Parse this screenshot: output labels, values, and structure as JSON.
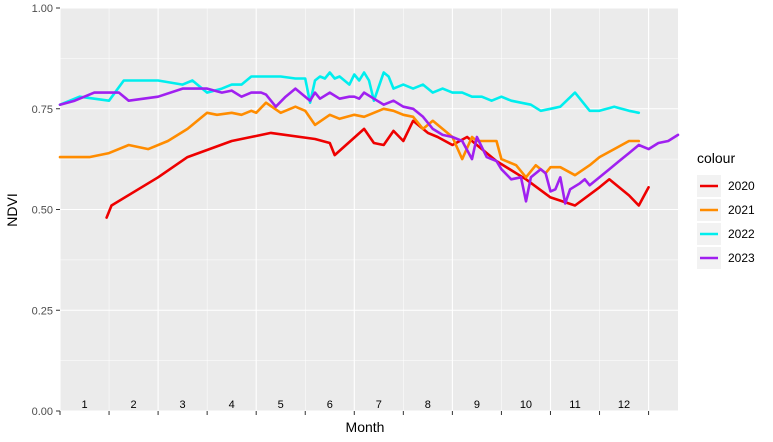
{
  "chart_data": {
    "type": "line",
    "title": "",
    "xlabel": "Month",
    "ylabel": "NDVI",
    "ylim": [
      0,
      1
    ],
    "xlim": [
      0,
      12.6
    ],
    "yticks": [
      0.0,
      0.25,
      0.5,
      0.75,
      1.0
    ],
    "ytick_labels": [
      "0.00",
      "0.25",
      "0.50",
      "0.75",
      "1.00"
    ],
    "month_labels": [
      "1",
      "2",
      "3",
      "4",
      "5",
      "6",
      "7",
      "8",
      "9",
      "10",
      "11",
      "12"
    ],
    "grid": true,
    "legend_title": "colour",
    "legend_position": "right",
    "series": [
      {
        "name": "2020",
        "color": "#ee0000",
        "x": [
          0.95,
          1.05,
          2.0,
          2.6,
          3.5,
          4.3,
          5.2,
          5.5,
          5.6,
          6.2,
          6.4,
          6.6,
          6.8,
          7.0,
          7.2,
          7.5,
          7.7,
          8.0,
          8.3,
          8.9,
          9.5,
          10.0,
          10.5,
          11.0,
          11.2,
          11.6,
          11.8,
          12.0
        ],
        "y": [
          0.48,
          0.51,
          0.58,
          0.63,
          0.67,
          0.69,
          0.675,
          0.665,
          0.635,
          0.7,
          0.665,
          0.66,
          0.695,
          0.67,
          0.72,
          0.69,
          0.68,
          0.66,
          0.68,
          0.62,
          0.575,
          0.53,
          0.51,
          0.555,
          0.575,
          0.535,
          0.51,
          0.555
        ]
      },
      {
        "name": "2021",
        "color": "#ff8c00",
        "x": [
          0.0,
          0.6,
          1.0,
          1.4,
          1.8,
          2.2,
          2.6,
          3.0,
          3.2,
          3.5,
          3.7,
          3.9,
          4.0,
          4.2,
          4.5,
          4.8,
          5.0,
          5.2,
          5.5,
          5.7,
          6.0,
          6.2,
          6.4,
          6.6,
          6.8,
          7.0,
          7.2,
          7.4,
          7.6,
          7.8,
          8.0,
          8.2,
          8.4,
          8.5,
          8.9,
          9.0,
          9.3,
          9.5,
          9.7,
          9.9,
          10.0,
          10.2,
          10.5,
          10.8,
          11.0,
          11.3,
          11.6,
          11.8
        ],
        "y": [
          0.63,
          0.63,
          0.64,
          0.66,
          0.65,
          0.67,
          0.7,
          0.74,
          0.735,
          0.74,
          0.735,
          0.745,
          0.74,
          0.765,
          0.74,
          0.755,
          0.745,
          0.71,
          0.735,
          0.725,
          0.735,
          0.73,
          0.74,
          0.75,
          0.745,
          0.735,
          0.73,
          0.7,
          0.72,
          0.7,
          0.68,
          0.625,
          0.68,
          0.67,
          0.67,
          0.625,
          0.61,
          0.58,
          0.61,
          0.59,
          0.605,
          0.605,
          0.585,
          0.61,
          0.63,
          0.65,
          0.67,
          0.67
        ]
      },
      {
        "name": "2022",
        "color": "#00eeee",
        "x": [
          0.0,
          0.4,
          1.0,
          1.3,
          1.5,
          2.0,
          2.5,
          2.7,
          3.0,
          3.3,
          3.5,
          3.7,
          3.9,
          4.0,
          4.5,
          4.8,
          5.0,
          5.1,
          5.2,
          5.3,
          5.4,
          5.5,
          5.6,
          5.7,
          5.9,
          6.0,
          6.1,
          6.2,
          6.3,
          6.4,
          6.6,
          6.7,
          6.8,
          7.0,
          7.2,
          7.4,
          7.6,
          7.8,
          8.0,
          8.2,
          8.4,
          8.6,
          8.8,
          9.0,
          9.2,
          9.4,
          9.6,
          9.8,
          10.0,
          10.2,
          10.5,
          10.8,
          11.0,
          11.3,
          11.6,
          11.8
        ],
        "y": [
          0.76,
          0.78,
          0.77,
          0.82,
          0.82,
          0.82,
          0.81,
          0.82,
          0.79,
          0.8,
          0.81,
          0.81,
          0.83,
          0.83,
          0.83,
          0.825,
          0.825,
          0.765,
          0.82,
          0.83,
          0.825,
          0.84,
          0.825,
          0.83,
          0.81,
          0.835,
          0.82,
          0.84,
          0.82,
          0.77,
          0.84,
          0.83,
          0.8,
          0.81,
          0.8,
          0.81,
          0.79,
          0.8,
          0.79,
          0.79,
          0.78,
          0.78,
          0.77,
          0.78,
          0.77,
          0.765,
          0.76,
          0.745,
          0.75,
          0.755,
          0.79,
          0.745,
          0.745,
          0.755,
          0.745,
          0.74
        ]
      },
      {
        "name": "2023",
        "color": "#a020f0",
        "x": [
          0.0,
          0.3,
          0.7,
          1.2,
          1.4,
          1.7,
          2.0,
          2.5,
          3.0,
          3.3,
          3.5,
          3.7,
          3.9,
          4.1,
          4.2,
          4.4,
          4.6,
          4.8,
          5.0,
          5.1,
          5.2,
          5.3,
          5.5,
          5.7,
          5.9,
          6.0,
          6.1,
          6.2,
          6.4,
          6.6,
          6.8,
          7.0,
          7.2,
          7.4,
          7.6,
          7.8,
          8.0,
          8.2,
          8.4,
          8.5,
          8.7,
          8.9,
          9.0,
          9.2,
          9.4,
          9.5,
          9.6,
          9.8,
          9.9,
          10.0,
          10.1,
          10.2,
          10.3,
          10.4,
          10.6,
          10.7,
          10.8,
          11.0,
          11.2,
          11.4,
          11.6,
          11.8,
          12.0,
          12.2,
          12.4,
          12.6
        ],
        "y": [
          0.76,
          0.77,
          0.79,
          0.79,
          0.77,
          0.775,
          0.78,
          0.8,
          0.8,
          0.79,
          0.795,
          0.78,
          0.79,
          0.79,
          0.785,
          0.755,
          0.78,
          0.8,
          0.78,
          0.77,
          0.79,
          0.775,
          0.79,
          0.775,
          0.78,
          0.78,
          0.775,
          0.79,
          0.775,
          0.76,
          0.77,
          0.755,
          0.75,
          0.73,
          0.7,
          0.685,
          0.68,
          0.67,
          0.625,
          0.68,
          0.63,
          0.62,
          0.6,
          0.575,
          0.58,
          0.52,
          0.58,
          0.6,
          0.59,
          0.545,
          0.55,
          0.58,
          0.515,
          0.55,
          0.565,
          0.575,
          0.56,
          0.58,
          0.6,
          0.62,
          0.64,
          0.66,
          0.65,
          0.665,
          0.67,
          0.685
        ]
      }
    ]
  }
}
